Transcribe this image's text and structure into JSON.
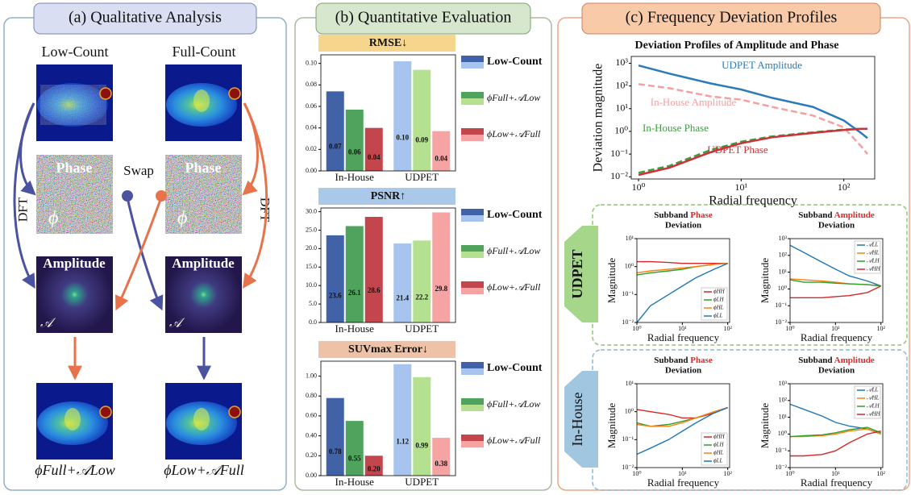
{
  "panel_a": {
    "title": "(a) Qualitative Analysis",
    "columns": [
      "Low-Count",
      "Full-Count"
    ],
    "phase_labels": [
      "Phase",
      "Phase"
    ],
    "swap": "Swap",
    "amplitude_labels": [
      "Amplitude",
      "Amplitude"
    ],
    "dft_labels": [
      "DFT",
      "DFT"
    ],
    "phi_symbols": [
      "ϕ",
      "ϕ"
    ],
    "amp_symbols": [
      "𝒜",
      "𝒜"
    ],
    "results": [
      "ϕFull+𝒜Low",
      "ϕLow+𝒜Full"
    ]
  },
  "panel_b": {
    "title": "(b) Quantitative Evaluation"
  },
  "panel_c": {
    "title": "(c) Frequency Deviation Profiles",
    "groups": [
      "UDPET",
      "In-House"
    ]
  },
  "chart_data": [
    {
      "type": "bar",
      "title": "RMSE↓",
      "header_color": "#f6d58c",
      "categories": [
        "In-House",
        "UDPET"
      ],
      "ylim": [
        0,
        0.108
      ],
      "yticks": [
        {
          "value": 0,
          "label": "0.00"
        },
        {
          "value": 0.02,
          "label": "0.02"
        },
        {
          "value": 0.04,
          "label": "0.04"
        },
        {
          "value": 0.06,
          "label": "0.06"
        },
        {
          "value": 0.08,
          "label": "0.08"
        },
        {
          "value": 0.1,
          "label": "0.10"
        }
      ],
      "series": [
        {
          "name": "Low-Count",
          "colors": [
            "#4262a8",
            "#a7c4ee"
          ],
          "values": [
            0.074,
            0.102
          ],
          "value_labels": [
            "0.07",
            "0.10"
          ]
        },
        {
          "name": "ϕFull+𝒜Low",
          "colors": [
            "#4fa35c",
            "#b5e090"
          ],
          "values": [
            0.057,
            0.094
          ],
          "value_labels": [
            "0.06",
            "0.09"
          ]
        },
        {
          "name": "ϕLow+𝒜Full",
          "colors": [
            "#c2464c",
            "#f5a3a3"
          ],
          "values": [
            0.04,
            0.037
          ],
          "value_labels": [
            "0.04",
            "0.04"
          ]
        }
      ]
    },
    {
      "type": "bar",
      "title": "PSNR↑",
      "header_color": "#aac9ea",
      "categories": [
        "In-House",
        "UDPET"
      ],
      "ylim": [
        0,
        31
      ],
      "yticks": [
        {
          "value": 0,
          "label": "0.0"
        },
        {
          "value": 5,
          "label": "5.0"
        },
        {
          "value": 10,
          "label": "10.0"
        },
        {
          "value": 15,
          "label": "15.0"
        },
        {
          "value": 20,
          "label": "20.0"
        },
        {
          "value": 25,
          "label": "25.0"
        },
        {
          "value": 30,
          "label": "30.0"
        }
      ],
      "series": [
        {
          "name": "Low-Count",
          "colors": [
            "#4262a8",
            "#a7c4ee"
          ],
          "values": [
            23.6,
            21.4
          ]
        },
        {
          "name": "ϕFull+𝒜Low",
          "colors": [
            "#4fa35c",
            "#b5e090"
          ],
          "values": [
            26.1,
            22.2
          ]
        },
        {
          "name": "ϕLow+𝒜Full",
          "colors": [
            "#c2464c",
            "#f5a3a3"
          ],
          "values": [
            28.6,
            29.8
          ]
        }
      ]
    },
    {
      "type": "bar",
      "title": "SUVmax Error↓",
      "header_color": "#eec2a6",
      "categories": [
        "In-House",
        "UDPET"
      ],
      "ylim": [
        0,
        1.15
      ],
      "yticks": [
        {
          "value": 0,
          "label": "0.00"
        },
        {
          "value": 0.2,
          "label": "0.20"
        },
        {
          "value": 0.4,
          "label": "0.40"
        },
        {
          "value": 0.6,
          "label": "0.60"
        },
        {
          "value": 0.8,
          "label": "0.80"
        },
        {
          "value": 1,
          "label": "1.00"
        }
      ],
      "series": [
        {
          "name": "Low-Count",
          "colors": [
            "#4262a8",
            "#a7c4ee"
          ],
          "values": [
            0.78,
            1.12
          ]
        },
        {
          "name": "ϕFull+𝒜Low",
          "colors": [
            "#4fa35c",
            "#b5e090"
          ],
          "values": [
            0.55,
            0.99
          ]
        },
        {
          "name": "ϕLow+𝒜Full",
          "colors": [
            "#c2464c",
            "#f5a3a3"
          ],
          "values": [
            0.2,
            0.38
          ],
          "value_labels": [
            "0.20",
            "0.38"
          ]
        }
      ]
    },
    {
      "type": "line",
      "title": "Deviation Profiles of Amplitude and Phase",
      "xlabel": "Radial frequency",
      "ylabel": "Deviation magnitude",
      "xscale": "log",
      "yscale": "log",
      "xlim": [
        0.85,
        200
      ],
      "ylim": [
        0.008,
        2000
      ],
      "xticks": [
        {
          "value": 1,
          "label": "10⁰"
        },
        {
          "value": 10,
          "label": "10¹"
        },
        {
          "value": 100,
          "label": "10²"
        }
      ],
      "yticks": [
        {
          "value": 0.01,
          "label": "10⁻²"
        },
        {
          "value": 0.1,
          "label": "10⁻¹"
        },
        {
          "value": 1,
          "label": "10⁰"
        },
        {
          "value": 10,
          "label": "10¹"
        },
        {
          "value": 100,
          "label": "10²"
        },
        {
          "value": 1000,
          "label": "10³"
        }
      ],
      "x": [
        1,
        2,
        5,
        10,
        20,
        50,
        100,
        150,
        170
      ],
      "series": [
        {
          "name": "UDPET Amplitude",
          "color": "#2b7bb9",
          "linestyle": "solid",
          "values": [
            800,
            350,
            130,
            70,
            30,
            12,
            3,
            0.8,
            0.5
          ]
        },
        {
          "name": "In-House Amplitude",
          "color": "#f4a0a0",
          "linestyle": "dashed",
          "values": [
            120,
            80,
            35,
            25,
            12,
            5,
            1.5,
            0.2,
            0.1
          ]
        },
        {
          "name": "In-House Phase",
          "color": "#3a9e3a",
          "linestyle": "dashed",
          "values": [
            0.015,
            0.03,
            0.15,
            0.35,
            0.6,
            0.9,
            1.2,
            1.3,
            1.3
          ]
        },
        {
          "name": "UDPET Phase",
          "color": "#d0303a",
          "linestyle": "solid",
          "values": [
            0.012,
            0.025,
            0.12,
            0.3,
            0.55,
            0.85,
            1.15,
            1.3,
            1.3
          ]
        }
      ]
    },
    {
      "type": "line",
      "title_parts": [
        "Subband",
        "Phase",
        "Deviation"
      ],
      "highlight_color": "#e02a2a",
      "xlabel": "Radial frequency",
      "ylabel": "Magnitude",
      "xscale": "log",
      "yscale": "log",
      "xlim": [
        1,
        110
      ],
      "ylim": [
        0.01,
        10
      ],
      "legend": "lower right",
      "xticks": [
        {
          "value": 1,
          "label": "10⁰"
        },
        {
          "value": 10,
          "label": "10¹"
        },
        {
          "value": 100,
          "label": "10²"
        }
      ],
      "yticks": [
        {
          "value": 0.01,
          "label": "10⁻²"
        },
        {
          "value": 0.1,
          "label": "10⁻¹"
        },
        {
          "value": 1,
          "label": "10⁰"
        },
        {
          "value": 10,
          "label": "10¹"
        }
      ],
      "x": [
        1,
        2,
        5,
        10,
        20,
        50,
        100
      ],
      "series": [
        {
          "name": "ϕHH",
          "color": "#d62728",
          "values": [
            1.5,
            1.5,
            1.4,
            1.3,
            1.3,
            1.3,
            1.3
          ]
        },
        {
          "name": "ϕLH",
          "color": "#2ca02c",
          "values": [
            0.5,
            0.6,
            0.7,
            0.8,
            1.0,
            1.2,
            1.3
          ]
        },
        {
          "name": "ϕHL",
          "color": "#ff7f0e",
          "values": [
            0.6,
            0.7,
            0.8,
            0.9,
            1.0,
            1.2,
            1.3
          ]
        },
        {
          "name": "ϕLL",
          "color": "#1f77b4",
          "values": [
            0.01,
            0.04,
            0.1,
            0.2,
            0.4,
            0.8,
            1.3
          ]
        }
      ]
    },
    {
      "type": "line",
      "title_parts": [
        "Subband",
        "Amplitude",
        "Deviation"
      ],
      "highlight_color": "#e02a2a",
      "xlabel": "Radial frequency",
      "ylabel": "Magnitude",
      "xscale": "log",
      "yscale": "log",
      "xlim": [
        1,
        110
      ],
      "ylim": [
        0.01,
        1000
      ],
      "legend": "upper right",
      "xticks": [
        {
          "value": 1,
          "label": "10⁰"
        },
        {
          "value": 10,
          "label": "10¹"
        },
        {
          "value": 100,
          "label": "10²"
        }
      ],
      "yticks": [
        {
          "value": 0.01,
          "label": "10⁻²"
        },
        {
          "value": 0.1,
          "label": "10⁻¹"
        },
        {
          "value": 1,
          "label": "10⁰"
        },
        {
          "value": 10,
          "label": "10¹"
        },
        {
          "value": 100,
          "label": "10²"
        },
        {
          "value": 1000,
          "label": "10³"
        }
      ],
      "x": [
        1,
        2,
        5,
        10,
        20,
        50,
        100
      ],
      "series": [
        {
          "name": "𝒜LL",
          "color": "#1f77b4",
          "values": [
            400,
            150,
            40,
            15,
            6,
            3,
            1.5
          ]
        },
        {
          "name": "𝒜HL",
          "color": "#ff7f0e",
          "values": [
            4,
            3.5,
            3,
            2.5,
            2,
            1.8,
            1.5
          ]
        },
        {
          "name": "𝒜LH",
          "color": "#2ca02c",
          "values": [
            3.5,
            2.5,
            2.5,
            2.2,
            2,
            1.8,
            1.5
          ]
        },
        {
          "name": "𝒜HH",
          "color": "#d62728",
          "values": [
            0.3,
            0.3,
            0.3,
            0.35,
            0.4,
            0.6,
            1.5
          ]
        }
      ]
    },
    {
      "type": "line",
      "title_parts": [
        "Subband",
        "Phase",
        "Deviation"
      ],
      "highlight_color": "#e02a2a",
      "xlabel": "Radial frequency",
      "ylabel": "Magnitude",
      "xscale": "log",
      "yscale": "log",
      "xlim": [
        1,
        110
      ],
      "ylim": [
        0.01,
        10
      ],
      "legend": "lower right",
      "xticks": [
        {
          "value": 1,
          "label": "10⁰"
        },
        {
          "value": 10,
          "label": "10¹"
        },
        {
          "value": 100,
          "label": "10²"
        }
      ],
      "yticks": [
        {
          "value": 0.01,
          "label": "10⁻²"
        },
        {
          "value": 0.1,
          "label": "10⁻¹"
        },
        {
          "value": 1,
          "label": "10⁰"
        },
        {
          "value": 10,
          "label": "10¹"
        }
      ],
      "x": [
        1,
        2,
        5,
        10,
        20,
        50,
        100
      ],
      "series": [
        {
          "name": "ϕHH",
          "color": "#d62728",
          "values": [
            1.2,
            1.0,
            0.8,
            0.6,
            0.6,
            0.9,
            1.4
          ]
        },
        {
          "name": "ϕLH",
          "color": "#2ca02c",
          "values": [
            0.4,
            0.3,
            0.35,
            0.45,
            0.6,
            1.0,
            1.4
          ]
        },
        {
          "name": "ϕHL",
          "color": "#ff7f0e",
          "values": [
            0.35,
            0.3,
            0.3,
            0.4,
            0.6,
            1.0,
            1.4
          ]
        },
        {
          "name": "ϕLL",
          "color": "#1f77b4",
          "values": [
            0.03,
            0.05,
            0.1,
            0.2,
            0.4,
            0.9,
            1.4
          ]
        }
      ]
    },
    {
      "type": "line",
      "title_parts": [
        "Subband",
        "Amplitude",
        "Deviation"
      ],
      "highlight_color": "#e02a2a",
      "xlabel": "Radial frequency",
      "ylabel": "Magnitude",
      "xscale": "log",
      "yscale": "log",
      "xlim": [
        1,
        110
      ],
      "ylim": [
        0.01,
        1000
      ],
      "legend": "upper right",
      "xticks": [
        {
          "value": 1,
          "label": "10⁰"
        },
        {
          "value": 10,
          "label": "10¹"
        },
        {
          "value": 100,
          "label": "10²"
        }
      ],
      "yticks": [
        {
          "value": 0.01,
          "label": "10⁻²"
        },
        {
          "value": 0.1,
          "label": "10⁻¹"
        },
        {
          "value": 1,
          "label": "10⁰"
        },
        {
          "value": 10,
          "label": "10¹"
        },
        {
          "value": 100,
          "label": "10²"
        },
        {
          "value": 1000,
          "label": "10³"
        }
      ],
      "x": [
        1,
        2,
        5,
        10,
        20,
        50,
        100
      ],
      "series": [
        {
          "name": "𝒜LL",
          "color": "#1f77b4",
          "values": [
            60,
            30,
            12,
            5,
            3,
            2,
            1
          ]
        },
        {
          "name": "𝒜HL",
          "color": "#ff7f0e",
          "values": [
            0.7,
            0.7,
            0.8,
            1,
            1.5,
            2,
            1
          ]
        },
        {
          "name": "𝒜LH",
          "color": "#2ca02c",
          "values": [
            0.7,
            0.8,
            0.9,
            1.2,
            1.8,
            2.5,
            1.2
          ]
        },
        {
          "name": "𝒜HH",
          "color": "#d62728",
          "values": [
            0.05,
            0.05,
            0.06,
            0.1,
            0.3,
            1,
            1.5
          ]
        }
      ]
    }
  ]
}
